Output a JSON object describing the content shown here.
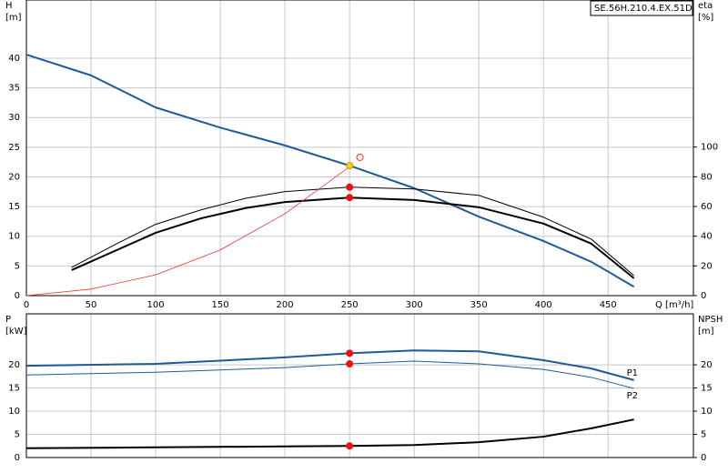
{
  "chart_data": [
    {
      "type": "line",
      "label": "SE.56H.210.4.EX.51D.",
      "y_label": [
        "H",
        "[m]"
      ],
      "y2_label": [
        "eta",
        "[%]"
      ],
      "x_label": "Q [m³/h]",
      "xlim": [
        0,
        516
      ],
      "xticks": [
        0,
        50,
        100,
        150,
        200,
        250,
        300,
        350,
        400,
        450
      ],
      "ylim": [
        0,
        49.8
      ],
      "yticks": [
        0,
        5,
        10,
        15,
        20,
        25,
        30,
        35,
        40
      ],
      "y2lim": [
        0,
        199
      ],
      "y2ticks": [
        0,
        20,
        40,
        60,
        80,
        100
      ],
      "grid": true,
      "series": [
        {
          "color": "#1f5a96",
          "width": 2,
          "x": [
            0,
            50,
            100,
            150,
            200,
            250,
            300,
            350,
            400,
            437,
            470
          ],
          "values": [
            40.6,
            37.1,
            31.7,
            28.3,
            25.3,
            21.9,
            18.1,
            13.3,
            9.2,
            5.7,
            1.5
          ]
        },
        {
          "color": "#000000",
          "width": 1,
          "axis": "y2",
          "x": [
            35,
            70,
            100,
            135,
            170,
            200,
            250,
            300,
            350,
            400,
            437,
            470
          ],
          "values": [
            19,
            35,
            48,
            57.7,
            65.6,
            70,
            73,
            71.8,
            67.5,
            52.8,
            38,
            13.5
          ]
        },
        {
          "color": "#000000",
          "width": 2,
          "axis": "y2",
          "x": [
            35,
            70,
            100,
            135,
            170,
            200,
            250,
            300,
            350,
            400,
            437,
            470
          ],
          "values": [
            17.2,
            30.7,
            42.3,
            52,
            59,
            63,
            66,
            64.4,
            59.5,
            48.5,
            35,
            11.7
          ]
        },
        {
          "color": "#ee3030",
          "width": 0.8,
          "x": [
            0,
            50,
            100,
            150,
            200,
            250
          ],
          "values": [
            0,
            1.1,
            3.5,
            7.7,
            13.8,
            21.7
          ]
        },
        {
          "color": "#ffd400",
          "marker": "filled",
          "x": [
            250
          ],
          "values": [
            21.9
          ]
        },
        {
          "color": "#ee1111",
          "marker": "filled",
          "axis": "y2",
          "x": [
            250,
            250
          ],
          "values": [
            73,
            66
          ]
        },
        {
          "color": "#ee3030",
          "marker": "open",
          "x": [
            258
          ],
          "values": [
            23.3
          ]
        }
      ]
    },
    {
      "type": "line",
      "y_label": [
        "P",
        "[kW]"
      ],
      "y2_label": [
        "NPSH",
        "[m]"
      ],
      "xlim": [
        0,
        516
      ],
      "ylim": [
        0,
        31
      ],
      "yticks": [
        0,
        5,
        10,
        15,
        20
      ],
      "y2lim": [
        0,
        31
      ],
      "y2ticks": [
        0,
        5,
        10,
        15,
        20
      ],
      "grid": true,
      "series": [
        {
          "name": "P1",
          "color": "#1f5a96",
          "width": 2,
          "x": [
            0,
            100,
            200,
            250,
            300,
            350,
            400,
            437,
            470
          ],
          "values": [
            19.8,
            20.2,
            21.6,
            22.5,
            23.1,
            22.9,
            21,
            19.2,
            16.7
          ]
        },
        {
          "name": "P2",
          "color": "#1f5a96",
          "width": 1,
          "x": [
            0,
            100,
            200,
            250,
            300,
            350,
            400,
            437,
            470
          ],
          "values": [
            17.8,
            18.4,
            19.4,
            20.2,
            20.8,
            20.2,
            19,
            17.3,
            14.9
          ]
        },
        {
          "color": "#000000",
          "width": 2,
          "axis": "y2",
          "x": [
            0,
            100,
            200,
            250,
            300,
            350,
            400,
            437,
            470
          ],
          "values": [
            2.0,
            2.2,
            2.4,
            2.5,
            2.7,
            3.3,
            4.5,
            6.3,
            8.2
          ]
        },
        {
          "color": "#ee1111",
          "marker": "filled",
          "x": [
            250,
            250
          ],
          "values": [
            22.5,
            20.2
          ]
        },
        {
          "color": "#ee1111",
          "marker": "filled",
          "axis": "y2",
          "x": [
            250
          ],
          "values": [
            2.5
          ]
        }
      ]
    }
  ]
}
